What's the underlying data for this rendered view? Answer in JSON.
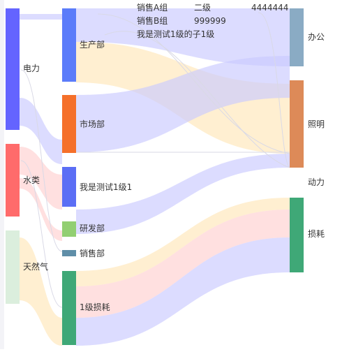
{
  "diagram": {
    "type": "sankey",
    "nodes": [
      {
        "id": "electric",
        "label": "电力",
        "color": "#6464ff"
      },
      {
        "id": "water",
        "label": "水类",
        "color": "#ff6b6b"
      },
      {
        "id": "gas",
        "label": "天然气",
        "color": "#dbeedd"
      },
      {
        "id": "prod",
        "label": "生产部",
        "color": "#5b7cfa"
      },
      {
        "id": "market",
        "label": "市场部",
        "color": "#f5702a"
      },
      {
        "id": "test1",
        "label": "我是测试1级1",
        "color": "#5b6ef5"
      },
      {
        "id": "rd",
        "label": "研发部",
        "color": "#92cf72"
      },
      {
        "id": "sales",
        "label": "销售部",
        "color": "#5f8ea8"
      },
      {
        "id": "loss1",
        "label": "1级损耗",
        "color": "#3fa877"
      },
      {
        "id": "salesA",
        "label": "销售A组",
        "color": "#9aa6e0"
      },
      {
        "id": "salesB",
        "label": "销售B组",
        "color": "#9aa6e0"
      },
      {
        "id": "testChild",
        "label": "我是测试1级的子1级",
        "color": "#9aa6e0"
      },
      {
        "id": "level2",
        "label": "二级",
        "color": "#9aa6e0"
      },
      {
        "id": "n999999",
        "label": "999999",
        "color": "#9aa6e0"
      },
      {
        "id": "n4444444",
        "label": "4444444",
        "color": "#9aa6e0"
      },
      {
        "id": "office",
        "label": "办公",
        "color": "#8aabc4"
      },
      {
        "id": "lighting",
        "label": "照明",
        "color": "#dd8a58"
      },
      {
        "id": "power",
        "label": "动力",
        "color": "#cfcfcf"
      },
      {
        "id": "loss",
        "label": "损耗",
        "color": "#3fa877"
      }
    ],
    "link_colors": {
      "electric": "#c9caff",
      "water": "#ffcfcf",
      "gas": "#ffe6b8"
    }
  }
}
